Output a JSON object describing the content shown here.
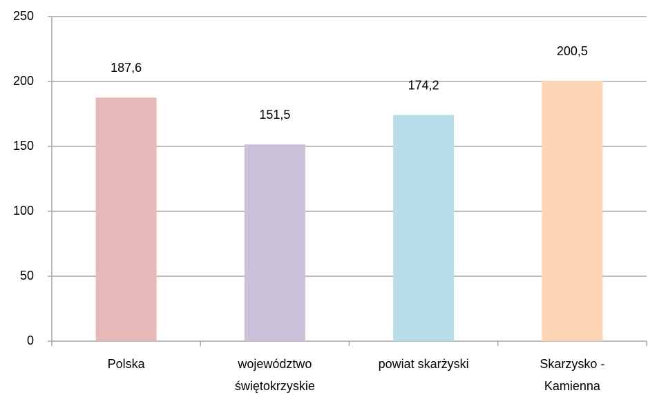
{
  "chart_data": {
    "type": "bar",
    "categories": [
      "Polska",
      "województwo świętokrzyskie",
      "powiat skarżyski",
      "Skarzysko - Kamienna"
    ],
    "values": [
      187.6,
      151.5,
      174.2,
      200.5
    ],
    "value_labels": [
      "187,6",
      "151,5",
      "174,2",
      "200,5"
    ],
    "colors": [
      "#e6b9b8",
      "#ccc1da",
      "#b7dde8",
      "#fcd5b5"
    ],
    "ylim": [
      0,
      250
    ],
    "yticks": [
      0,
      50,
      100,
      150,
      200,
      250
    ],
    "grid": true
  }
}
